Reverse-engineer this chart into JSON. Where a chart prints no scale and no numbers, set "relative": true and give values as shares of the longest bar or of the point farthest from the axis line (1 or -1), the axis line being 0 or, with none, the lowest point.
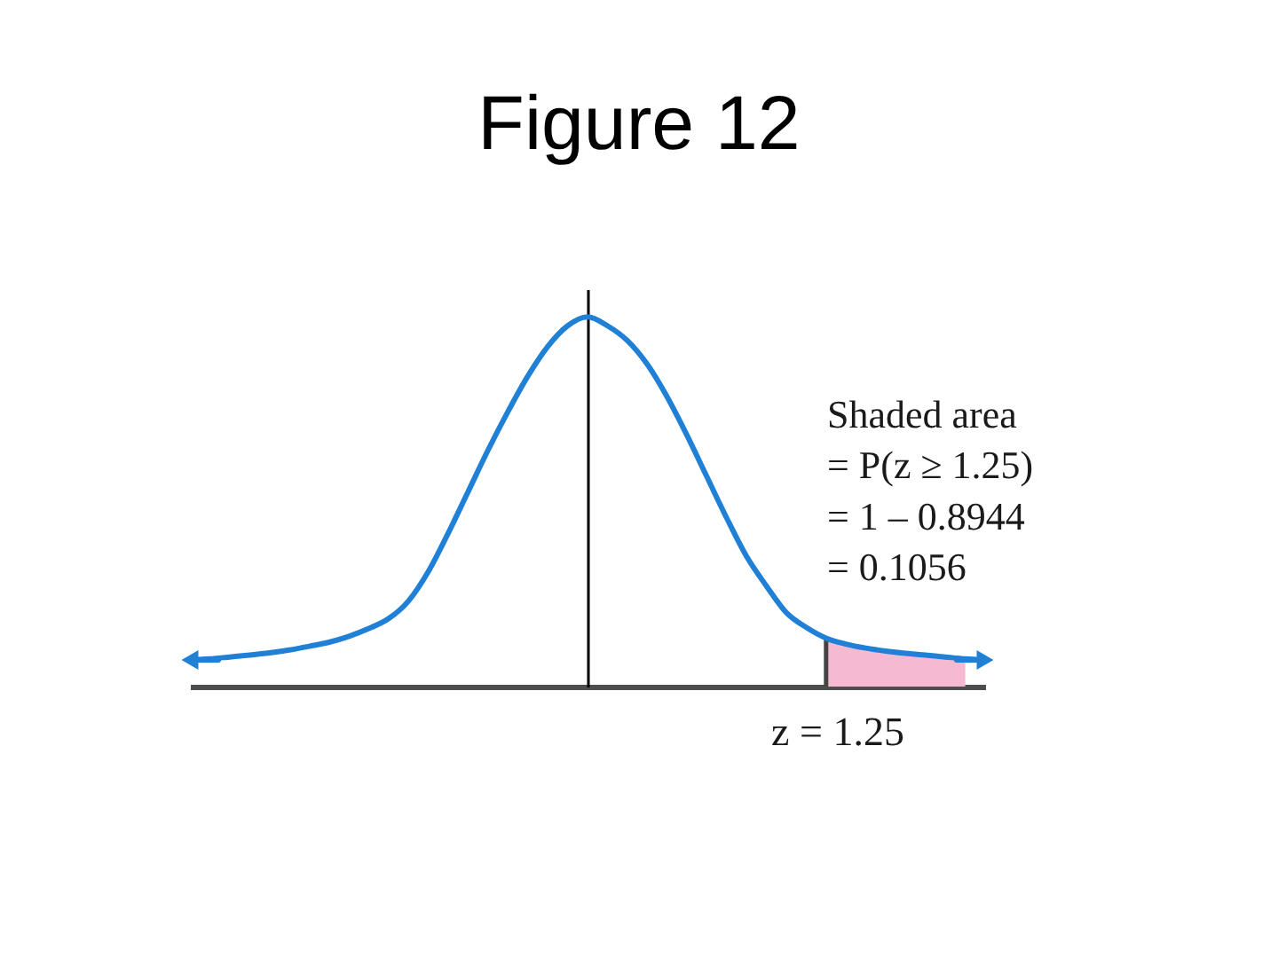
{
  "chart_data": {
    "type": "line",
    "title": "Figure 12",
    "relative": true,
    "categories": [
      null,
      null,
      null,
      null,
      null,
      null,
      null,
      null,
      null,
      null,
      null,
      null,
      null,
      null,
      null,
      null,
      null,
      null,
      null,
      null,
      null,
      null,
      null,
      null,
      null,
      null,
      null,
      null,
      null,
      null,
      null,
      null,
      null,
      null,
      null,
      null,
      null,
      null,
      null,
      null,
      null
    ],
    "series": [
      {
        "type": "line",
        "color": "#1f80d6",
        "values": [
          0.072,
          0.075,
          0.08,
          0.085,
          0.091,
          0.099,
          0.109,
          0.12,
          0.136,
          0.157,
          0.184,
          0.232,
          0.312,
          0.416,
          0.528,
          0.64,
          0.744,
          0.84,
          0.92,
          0.976,
          1,
          0.976,
          0.936,
          0.872,
          0.784,
          0.68,
          0.568,
          0.456,
          0.352,
          0.272,
          0.2,
          0.16,
          0.131,
          0.115,
          0.104,
          0.096,
          0.09,
          0.085,
          0.08,
          0.075,
          0.072
        ]
      },
      {
        "type": "area",
        "color": "#f5b9d2",
        "values": [
          null,
          null,
          null,
          null,
          null,
          null,
          null,
          null,
          null,
          null,
          null,
          null,
          null,
          null,
          null,
          null,
          null,
          null,
          null,
          null,
          null,
          null,
          null,
          null,
          null,
          null,
          null,
          null,
          null,
          null,
          null,
          null,
          0.131,
          0.115,
          0.104,
          0.096,
          0.09,
          0.085,
          0.08,
          0.075,
          null
        ]
      }
    ],
    "annotations": [
      "Shaded area",
      "= P(z ≥ 1.25)",
      "= 1 – 0.8944",
      "= 0.1056",
      "z = 1.25"
    ]
  }
}
